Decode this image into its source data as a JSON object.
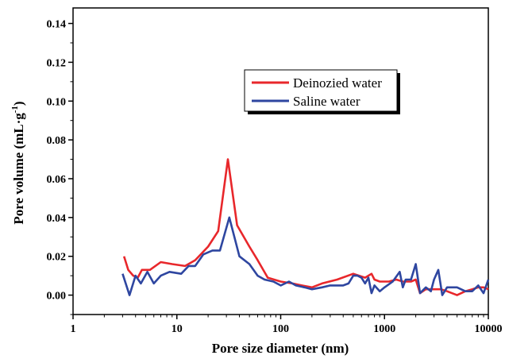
{
  "chart_data": {
    "type": "line",
    "xlabel": "Pore size diameter (nm)",
    "ylabel": "Pore volume (mL·g",
    "ylabel_superscript": "-1",
    "ylabel_suffix": ")",
    "x_scale": "log",
    "xlim": [
      1,
      10000
    ],
    "ylim": [
      -0.01,
      0.148
    ],
    "x_ticks": [
      1,
      10,
      100,
      1000,
      10000
    ],
    "x_tick_labels": [
      "1",
      "10",
      "100",
      "1000",
      "10000"
    ],
    "y_ticks": [
      0.0,
      0.02,
      0.04,
      0.06,
      0.08,
      0.1,
      0.12,
      0.14
    ],
    "y_tick_labels": [
      "0.00",
      "0.02",
      "0.04",
      "0.06",
      "0.08",
      "0.10",
      "0.12",
      "0.14"
    ],
    "grid": false,
    "legend_position": "upper-right-center",
    "series": [
      {
        "name": "Deinozied water",
        "color": "#e8272b",
        "points": [
          [
            3.1,
            0.02
          ],
          [
            3.4,
            0.013
          ],
          [
            3.8,
            0.01
          ],
          [
            4.2,
            0.009
          ],
          [
            4.6,
            0.013
          ],
          [
            5.5,
            0.013
          ],
          [
            7.0,
            0.017
          ],
          [
            9.0,
            0.016
          ],
          [
            12.0,
            0.015
          ],
          [
            15.0,
            0.018
          ],
          [
            20.0,
            0.025
          ],
          [
            25.0,
            0.033
          ],
          [
            31.0,
            0.07
          ],
          [
            38.0,
            0.036
          ],
          [
            50.0,
            0.025
          ],
          [
            60.0,
            0.018
          ],
          [
            75.0,
            0.009
          ],
          [
            100.0,
            0.007
          ],
          [
            130.0,
            0.006
          ],
          [
            160.0,
            0.005
          ],
          [
            200.0,
            0.004
          ],
          [
            250.0,
            0.006
          ],
          [
            350.0,
            0.008
          ],
          [
            500.0,
            0.011
          ],
          [
            650.0,
            0.009
          ],
          [
            750.0,
            0.011
          ],
          [
            800.0,
            0.008
          ],
          [
            900.0,
            0.007
          ],
          [
            1100.0,
            0.007
          ],
          [
            1300.0,
            0.008
          ],
          [
            1500.0,
            0.007
          ],
          [
            1800.0,
            0.007
          ],
          [
            2000.0,
            0.008
          ],
          [
            2200.0,
            0.001
          ],
          [
            2500.0,
            0.003
          ],
          [
            3000.0,
            0.003
          ],
          [
            3500.0,
            0.003
          ],
          [
            4000.0,
            0.002
          ],
          [
            5000.0,
            0.0
          ],
          [
            6000.0,
            0.002
          ],
          [
            7000.0,
            0.003
          ],
          [
            8000.0,
            0.004
          ],
          [
            9000.0,
            0.004
          ],
          [
            10000.0,
            0.003
          ]
        ]
      },
      {
        "name": "Saline water",
        "color": "#2e46a0",
        "points": [
          [
            3.0,
            0.011
          ],
          [
            3.5,
            0.0
          ],
          [
            4.0,
            0.01
          ],
          [
            4.5,
            0.006
          ],
          [
            5.2,
            0.012
          ],
          [
            6.0,
            0.006
          ],
          [
            7.0,
            0.01
          ],
          [
            8.5,
            0.012
          ],
          [
            11.0,
            0.011
          ],
          [
            13.0,
            0.015
          ],
          [
            15.0,
            0.015
          ],
          [
            18.0,
            0.021
          ],
          [
            22.0,
            0.023
          ],
          [
            26.0,
            0.023
          ],
          [
            32.0,
            0.04
          ],
          [
            40.0,
            0.02
          ],
          [
            50.0,
            0.016
          ],
          [
            60.0,
            0.01
          ],
          [
            70.0,
            0.008
          ],
          [
            85.0,
            0.007
          ],
          [
            100.0,
            0.005
          ],
          [
            120.0,
            0.007
          ],
          [
            140.0,
            0.005
          ],
          [
            170.0,
            0.004
          ],
          [
            200.0,
            0.003
          ],
          [
            250.0,
            0.004
          ],
          [
            300.0,
            0.005
          ],
          [
            350.0,
            0.005
          ],
          [
            400.0,
            0.005
          ],
          [
            450.0,
            0.006
          ],
          [
            500.0,
            0.01
          ],
          [
            550.0,
            0.01
          ],
          [
            600.0,
            0.009
          ],
          [
            650.0,
            0.006
          ],
          [
            700.0,
            0.009
          ],
          [
            750.0,
            0.001
          ],
          [
            800.0,
            0.005
          ],
          [
            900.0,
            0.002
          ],
          [
            1000.0,
            0.004
          ],
          [
            1200.0,
            0.007
          ],
          [
            1400.0,
            0.012
          ],
          [
            1500.0,
            0.004
          ],
          [
            1600.0,
            0.008
          ],
          [
            1800.0,
            0.008
          ],
          [
            2000.0,
            0.016
          ],
          [
            2200.0,
            0.001
          ],
          [
            2500.0,
            0.004
          ],
          [
            2800.0,
            0.002
          ],
          [
            3000.0,
            0.008
          ],
          [
            3300.0,
            0.013
          ],
          [
            3600.0,
            0.0
          ],
          [
            4000.0,
            0.004
          ],
          [
            4500.0,
            0.004
          ],
          [
            5000.0,
            0.004
          ],
          [
            6000.0,
            0.002
          ],
          [
            7000.0,
            0.002
          ],
          [
            8000.0,
            0.005
          ],
          [
            9000.0,
            0.001
          ],
          [
            10000.0,
            0.008
          ]
        ]
      }
    ]
  }
}
